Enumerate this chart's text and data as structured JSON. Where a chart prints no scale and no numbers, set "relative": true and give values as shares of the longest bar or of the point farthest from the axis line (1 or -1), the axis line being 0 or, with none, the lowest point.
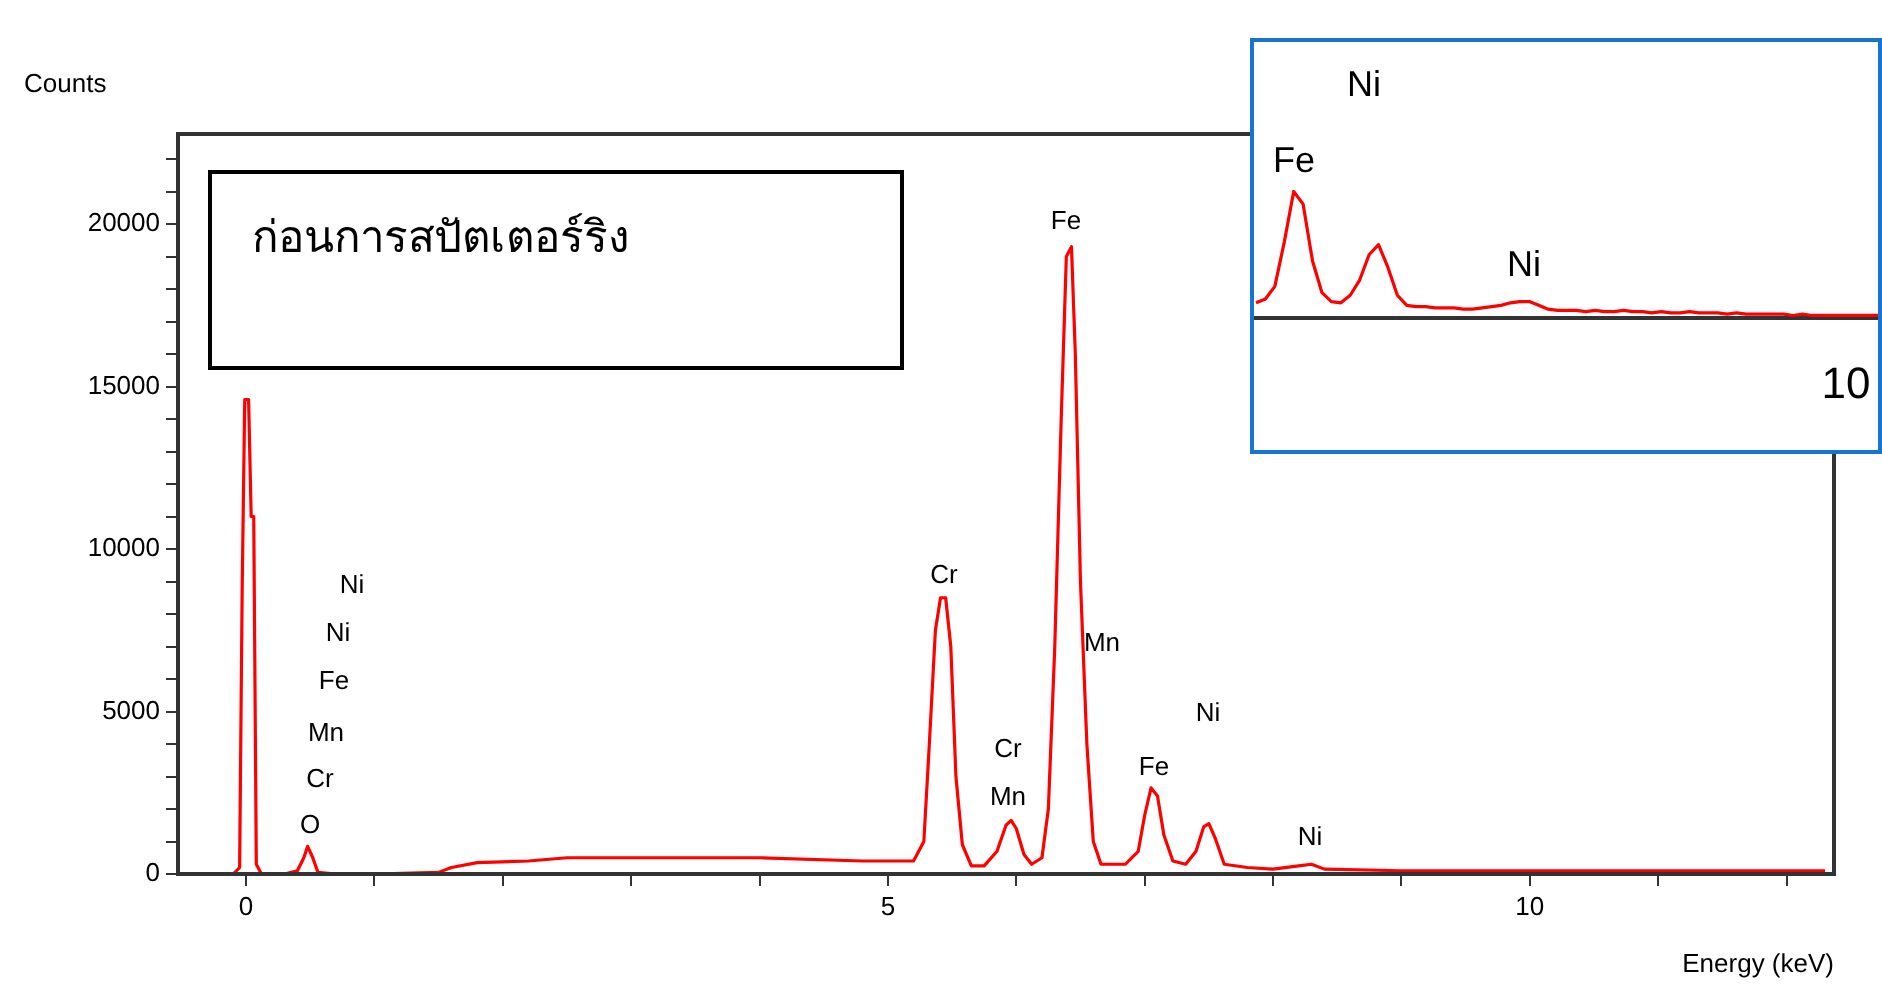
{
  "chart_data": [
    {
      "type": "line",
      "ylabel": "Counts",
      "xlabel": "Energy (keV)",
      "legend": false,
      "marker": "none",
      "xlim": [
        -0.53,
        12.37
      ],
      "ylim": [
        0,
        22770
      ],
      "xticks": [
        0,
        {
          "value": 1,
          "label": null
        },
        {
          "value": 2,
          "label": null
        },
        {
          "value": 3,
          "label": null
        },
        {
          "value": 4,
          "label": null
        },
        5,
        {
          "value": 6,
          "label": null
        },
        {
          "value": 7,
          "label": null
        },
        {
          "value": 8,
          "label": null
        },
        {
          "value": 9,
          "label": null
        },
        10,
        {
          "value": 11,
          "label": null
        },
        {
          "value": 12,
          "label": null
        }
      ],
      "yticks": [
        0,
        {
          "value": 1000,
          "label": null
        },
        {
          "value": 2000,
          "label": null
        },
        {
          "value": 3000,
          "label": null
        },
        {
          "value": 4000,
          "label": null
        },
        5000,
        {
          "value": 6000,
          "label": null
        },
        {
          "value": 7000,
          "label": null
        },
        {
          "value": 8000,
          "label": null
        },
        {
          "value": 9000,
          "label": null
        },
        10000,
        {
          "value": 11000,
          "label": null
        },
        {
          "value": 12000,
          "label": null
        },
        {
          "value": 13000,
          "label": null
        },
        {
          "value": 14000,
          "label": null
        },
        15000,
        {
          "value": 16000,
          "label": null
        },
        {
          "value": 17000,
          "label": null
        },
        {
          "value": 18000,
          "label": null
        },
        {
          "value": 19000,
          "label": null
        },
        20000,
        {
          "value": 21000,
          "label": null
        },
        {
          "value": 22000,
          "label": null
        }
      ],
      "series": [
        {
          "color": "#ff0000",
          "x": [
            -0.1,
            -0.05,
            -0.03,
            -0.01,
            0.02,
            0.04,
            0.06,
            0.08,
            0.12,
            0.3,
            0.4,
            0.45,
            0.48,
            0.52,
            0.56,
            0.7,
            1.0,
            1.5,
            1.6,
            1.8,
            2.2,
            2.5,
            3.0,
            4.0,
            4.8,
            5.2,
            5.28,
            5.32,
            5.37,
            5.41,
            5.45,
            5.49,
            5.53,
            5.58,
            5.65,
            5.75,
            5.85,
            5.92,
            5.96,
            6.0,
            6.06,
            6.12,
            6.2,
            6.25,
            6.3,
            6.35,
            6.39,
            6.43,
            6.46,
            6.5,
            6.55,
            6.6,
            6.66,
            6.85,
            6.95,
            7.0,
            7.05,
            7.1,
            7.15,
            7.22,
            7.32,
            7.4,
            7.46,
            7.5,
            7.55,
            7.62,
            7.8,
            8.0,
            8.2,
            8.3,
            8.4,
            9.0,
            9.5,
            10,
            12.3
          ],
          "values": [
            0,
            200,
            8800,
            14600,
            14600,
            11000,
            11000,
            300,
            0,
            0,
            100,
            500,
            850,
            500,
            50,
            0,
            0,
            50,
            200,
            350,
            400,
            500,
            500,
            500,
            400,
            400,
            1000,
            3800,
            7500,
            8500,
            8500,
            7000,
            3000,
            900,
            250,
            250,
            700,
            1500,
            1650,
            1400,
            600,
            300,
            500,
            2000,
            7000,
            14000,
            19000,
            19300,
            16000,
            9000,
            4000,
            1000,
            300,
            300,
            700,
            1800,
            2650,
            2400,
            1200,
            400,
            300,
            700,
            1450,
            1550,
            1100,
            300,
            200,
            150,
            250,
            300,
            150,
            100,
            100,
            100,
            100
          ]
        }
      ],
      "annotations": [
        "ก่อนการสปัตเตอร์ริง",
        "O",
        "Cr",
        "Mn",
        "Fe",
        "Ni",
        "Ni",
        "Cr",
        "Cr",
        "Mn",
        "Fe",
        "Mn",
        "Fe",
        "Ni",
        "Ni"
      ]
    },
    {
      "type": "line",
      "relative": true,
      "legend": false,
      "marker": "none",
      "tick_labels": false,
      "categories": [
        null,
        null,
        null,
        null,
        null,
        null,
        null,
        null,
        null,
        null,
        null,
        null,
        null,
        null,
        null,
        null,
        null,
        null,
        null,
        null,
        null,
        null,
        null,
        null,
        null,
        null,
        null,
        null,
        null,
        null,
        null,
        null,
        null,
        null,
        null,
        null,
        null,
        null,
        null,
        null,
        null,
        null,
        null,
        null,
        null,
        null,
        null,
        null,
        null,
        null,
        null,
        null,
        null,
        null,
        null,
        null,
        null,
        null,
        null,
        null,
        null,
        null,
        null,
        null,
        null,
        null,
        null
      ],
      "series": [
        {
          "color": "#ff0000",
          "values": [
            0.12,
            0.15,
            0.25,
            0.6,
            1,
            0.9,
            0.45,
            0.2,
            0.13,
            0.12,
            0.18,
            0.3,
            0.5,
            0.58,
            0.4,
            0.18,
            0.1,
            0.09,
            0.09,
            0.08,
            0.08,
            0.08,
            0.07,
            0.07,
            0.08,
            0.09,
            0.1,
            0.12,
            0.13,
            0.13,
            0.1,
            0.07,
            0.06,
            0.06,
            0.06,
            0.05,
            0.06,
            0.05,
            0.05,
            0.06,
            0.05,
            0.05,
            0.04,
            0.05,
            0.04,
            0.04,
            0.05,
            0.04,
            0.04,
            0.04,
            0.03,
            0.04,
            0.03,
            0.03,
            0.03,
            0.03,
            0.03,
            0.02,
            0.03,
            0.02,
            0.02,
            0.02,
            0.02,
            0.02,
            0.02,
            0.02,
            0.02
          ]
        }
      ],
      "annotations": [
        "Fe",
        "Ni",
        "Ni",
        "10"
      ]
    }
  ]
}
